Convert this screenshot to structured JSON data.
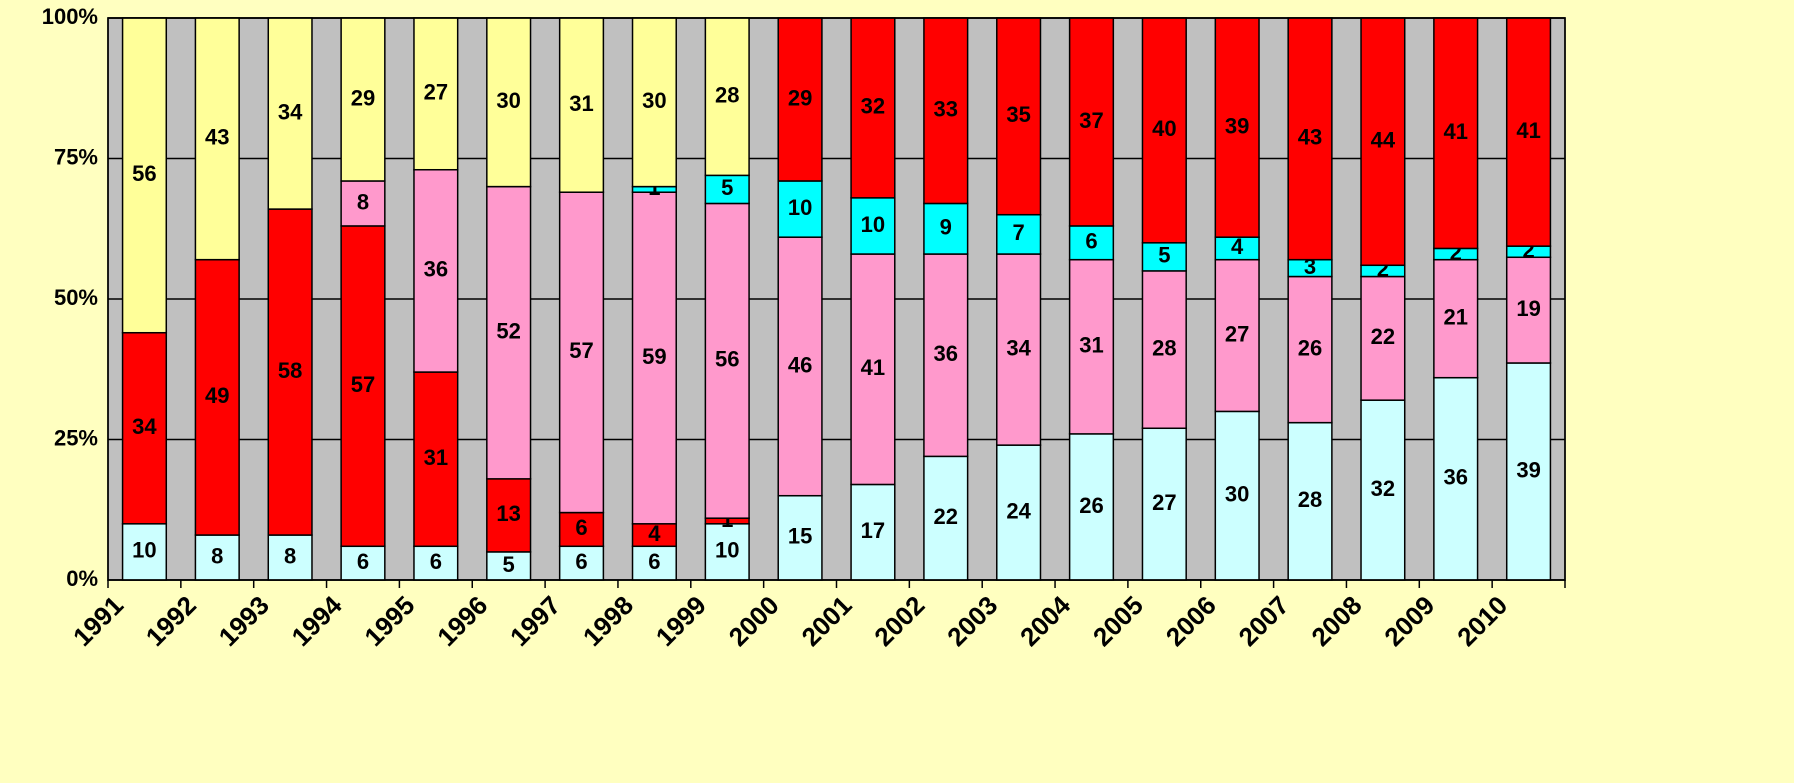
{
  "chart_data": {
    "type": "bar",
    "stack": "percent",
    "categories": [
      "1991",
      "1992",
      "1993",
      "1994",
      "1995",
      "1996",
      "1997",
      "1998",
      "1999",
      "2000",
      "2001",
      "2002",
      "2003",
      "2004",
      "2005",
      "2006",
      "2007",
      "2008",
      "2009",
      "2010"
    ],
    "series": [
      {
        "color": "#ccffff",
        "values": [
          10,
          8,
          8,
          6,
          6,
          5,
          6,
          6,
          10,
          15,
          17,
          22,
          24,
          26,
          27,
          30,
          28,
          32,
          36,
          39
        ]
      },
      {
        "color": "#ff0000",
        "values": [
          34,
          49,
          58,
          57,
          31,
          13,
          6,
          4,
          1,
          null,
          null,
          null,
          null,
          null,
          null,
          null,
          null,
          null,
          null,
          null
        ]
      },
      {
        "color": "#ff99cc",
        "values": [
          null,
          null,
          null,
          8,
          36,
          52,
          57,
          59,
          56,
          46,
          41,
          36,
          34,
          31,
          28,
          27,
          26,
          22,
          21,
          19
        ]
      },
      {
        "color": "#00ffff",
        "values": [
          null,
          null,
          null,
          null,
          null,
          null,
          null,
          1,
          5,
          10,
          10,
          9,
          7,
          6,
          5,
          4,
          3,
          2,
          2,
          2
        ]
      },
      {
        "color": "#ff0000",
        "values": [
          null,
          null,
          null,
          null,
          null,
          null,
          null,
          null,
          null,
          29,
          32,
          33,
          35,
          37,
          40,
          39,
          43,
          44,
          41,
          41
        ]
      },
      {
        "color": "#ffff99",
        "values": [
          56,
          43,
          34,
          29,
          27,
          30,
          31,
          30,
          28,
          null,
          null,
          null,
          null,
          null,
          null,
          null,
          null,
          null,
          null,
          null
        ]
      }
    ],
    "ylim": [
      0,
      100
    ],
    "yticks": [
      {
        "value": 0,
        "label": "0%"
      },
      {
        "value": 25,
        "label": "25%"
      },
      {
        "value": 50,
        "label": "50%"
      },
      {
        "value": 75,
        "label": "75%"
      },
      {
        "value": 100,
        "label": "100%"
      }
    ],
    "grid": true
  }
}
